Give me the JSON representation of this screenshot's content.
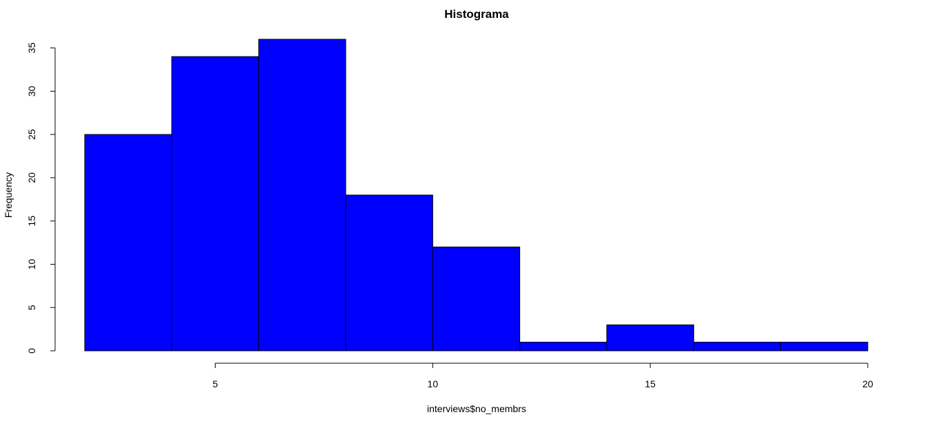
{
  "chart_data": {
    "type": "bar",
    "subtype": "histogram",
    "title": "Histograma",
    "xlabel": "interviews$no_membrs",
    "ylabel": "Frequency",
    "bins": [
      {
        "start": 2,
        "end": 4,
        "count": 25
      },
      {
        "start": 4,
        "end": 6,
        "count": 34
      },
      {
        "start": 6,
        "end": 8,
        "count": 36
      },
      {
        "start": 8,
        "end": 10,
        "count": 18
      },
      {
        "start": 10,
        "end": 12,
        "count": 12
      },
      {
        "start": 12,
        "end": 14,
        "count": 1
      },
      {
        "start": 14,
        "end": 16,
        "count": 3
      },
      {
        "start": 16,
        "end": 18,
        "count": 1
      },
      {
        "start": 18,
        "end": 20,
        "count": 1
      }
    ],
    "xlim": [
      2,
      20
    ],
    "ylim": [
      0,
      36
    ],
    "x_ticks": [
      5,
      10,
      15,
      20
    ],
    "y_ticks": [
      0,
      5,
      10,
      15,
      20,
      25,
      30,
      35
    ],
    "bar_color": "#0000ff",
    "border_color": "#000000",
    "grid": false,
    "legend": "none"
  }
}
